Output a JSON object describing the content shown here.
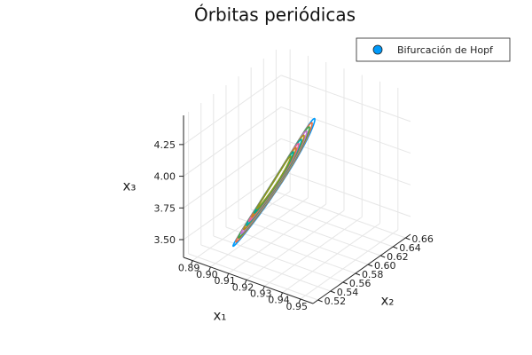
{
  "chart_data": {
    "type": "line3d",
    "title": "Órbitas periódicas",
    "xlabel": "x₁",
    "ylabel": "x₂",
    "zlabel": "x₃",
    "xlim": [
      0.885,
      0.957
    ],
    "ylim": [
      0.512,
      0.668
    ],
    "zlim": [
      3.36,
      4.48
    ],
    "x_ticks": [
      "0.89",
      "0.90",
      "0.91",
      "0.92",
      "0.93",
      "0.94",
      "0.95"
    ],
    "x_tick_values": [
      0.89,
      0.9,
      0.91,
      0.92,
      0.93,
      0.94,
      0.95
    ],
    "y_ticks": [
      "0.52",
      "0.54",
      "0.56",
      "0.58",
      "0.60",
      "0.62",
      "0.64",
      "0.66"
    ],
    "y_tick_values": [
      0.52,
      0.54,
      0.56,
      0.58,
      0.6,
      0.62,
      0.64,
      0.66
    ],
    "z_ticks": [
      "3.50",
      "3.75",
      "4.00",
      "4.25"
    ],
    "z_tick_values": [
      3.5,
      3.75,
      4.0,
      4.25
    ],
    "grid": true,
    "legend": {
      "position": "top-right",
      "entries": [
        {
          "label": "Bifurcación de Hopf",
          "marker": "circle",
          "color": "#009AFA"
        }
      ]
    },
    "series_colors": [
      "#009AFA",
      "#E36F47",
      "#3EA44E",
      "#C371D2",
      "#AC8E18",
      "#00A9AD",
      "#ED5E93",
      "#C68225",
      "#00A98D",
      "#8E971E"
    ],
    "orbit_family": {
      "count": 10,
      "center": [
        0.915,
        0.57,
        3.9
      ],
      "description_of_shape": "elongated closed loops along the x2 direction"
    }
  }
}
